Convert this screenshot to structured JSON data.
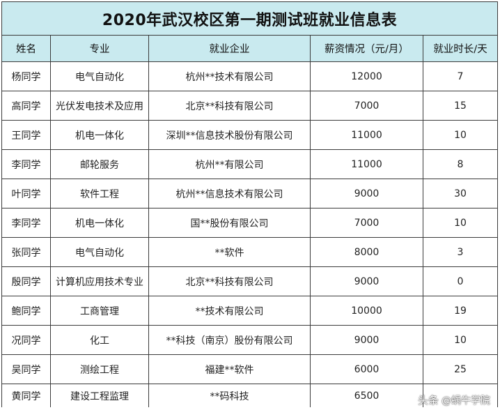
{
  "title": "2020年武汉校区第一期测试班就业信息表",
  "headers": [
    "姓名",
    "专业",
    "就业企业",
    "薪资情况（元/月）",
    "就业时长/天"
  ],
  "rows": [
    [
      "杨同学",
      "电气自动化",
      "杭州**技术有限公司",
      "12000",
      "7"
    ],
    [
      "高同学",
      "光伏发电技术及应用",
      "北京**科技有限公司",
      "7000",
      "15"
    ],
    [
      "王同学",
      "机电一体化",
      "深圳**信息技术股份有限公司",
      "11000",
      "10"
    ],
    [
      "李同学",
      "邮轮服务",
      "杭州**有限公司",
      "11000",
      "8"
    ],
    [
      "叶同学",
      "软件工程",
      "杭州**信息技术有限公司",
      "9000",
      "30"
    ],
    [
      "李同学",
      "机电一体化",
      "国**股份有限公司",
      "7000",
      "10"
    ],
    [
      "张同学",
      "电气自动化",
      "**软件",
      "8000",
      "3"
    ],
    [
      "殷同学",
      "计算机应用技术专业",
      "北京**科技有限公司",
      "9000",
      "0"
    ],
    [
      "鲍同学",
      "工商管理",
      "**技术有限公司",
      "10000",
      "19"
    ],
    [
      "况同学",
      "化工",
      "**科技（南京）股份有限公司",
      "9000",
      "10"
    ],
    [
      "吴同学",
      "测绘工程",
      "福建**软件",
      "6000",
      "25"
    ],
    [
      "黄同学",
      "建设工程监理",
      "**码科技",
      "6500",
      ""
    ]
  ],
  "watermark": {
    "source": "头条",
    "handle": "@蜗牛学院"
  },
  "colors": {
    "header_bg": "#c9eaef",
    "border": "#3a3a3a"
  }
}
